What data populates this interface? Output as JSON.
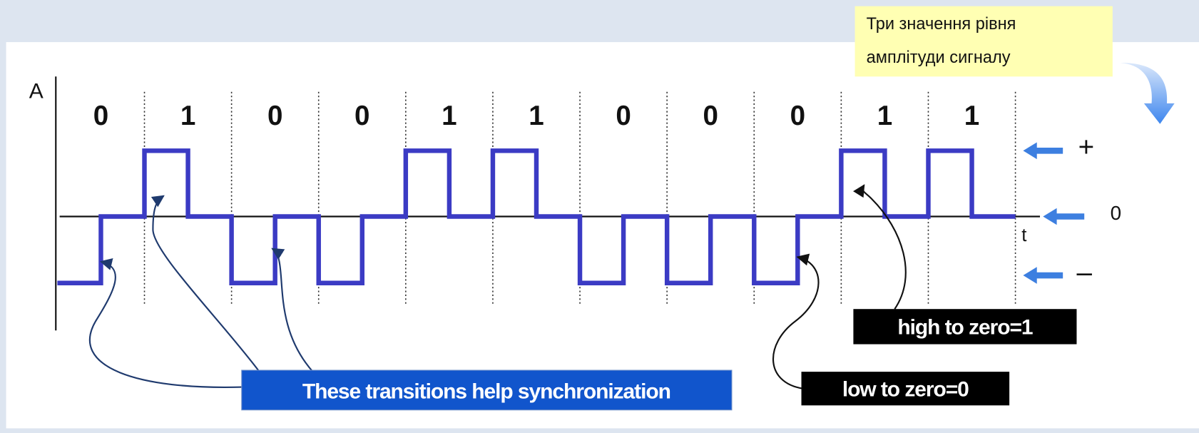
{
  "note": [
    "Три значення рівня",
    "амплітуди сигналу"
  ],
  "axis": {
    "y_label": "A",
    "x_label": "t"
  },
  "bits": [
    "0",
    "1",
    "0",
    "0",
    "1",
    "1",
    "0",
    "0",
    "0",
    "1",
    "1"
  ],
  "levels": {
    "high": "+",
    "zero": "0",
    "low": "–"
  },
  "callouts": {
    "sync": "These transitions help synchronization",
    "high_to_zero": "high to zero=1",
    "low_to_zero": "low to zero=0"
  }
}
